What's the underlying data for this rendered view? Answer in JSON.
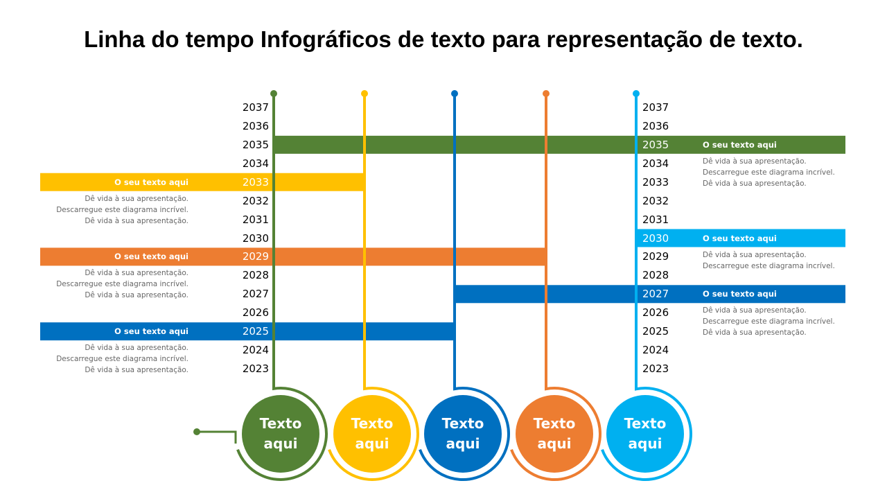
{
  "title": "Linha do tempo Infográficos de texto para representação de texto.",
  "years_left": [
    2037,
    2036,
    2035,
    2034,
    2033,
    2032,
    2031,
    2030,
    2029,
    2028,
    2027,
    2026,
    2025,
    2024,
    2023
  ],
  "years_right": [
    2037,
    2036,
    2035,
    2034,
    2033,
    2032,
    2031,
    2030,
    2029,
    2028,
    2027,
    2026,
    2025,
    2024,
    2023
  ],
  "left_callouts": [
    {
      "heading": "O seu texto aqui",
      "lines": [
        "Dê vida à sua apresentação.",
        "Descarregue este diagrama incrível.",
        "Dê vida à sua apresentação."
      ]
    },
    {
      "heading": "O seu texto aqui",
      "lines": [
        "Dê vida à sua apresentação.",
        "Descarregue este diagrama incrível.",
        "Dê vida à sua apresentação."
      ]
    },
    {
      "heading": "O seu texto aqui",
      "lines": [
        "Dê vida à sua apresentação.",
        "Descarregue este diagrama incrível.",
        "Dê vida à sua apresentação."
      ]
    }
  ],
  "right_callouts": [
    {
      "heading": "O seu texto aqui",
      "lines": [
        "Dê vida à sua apresentação.",
        "Descarregue este diagrama incrível.",
        "Dê vida à sua apresentação."
      ]
    },
    {
      "heading": "O seu texto aqui",
      "lines": [
        "Dê vida à sua apresentação.",
        "Descarregue este diagrama incrível."
      ]
    },
    {
      "heading": "O seu texto aqui",
      "lines": [
        "Dê vida à sua apresentação.",
        "Descarregue este diagrama incrível.",
        "Dê vida à sua apresentação."
      ]
    }
  ],
  "circles": [
    "Texto aqui",
    "Texto aqui",
    "Texto aqui",
    "Texto aqui",
    "Texto aqui"
  ]
}
